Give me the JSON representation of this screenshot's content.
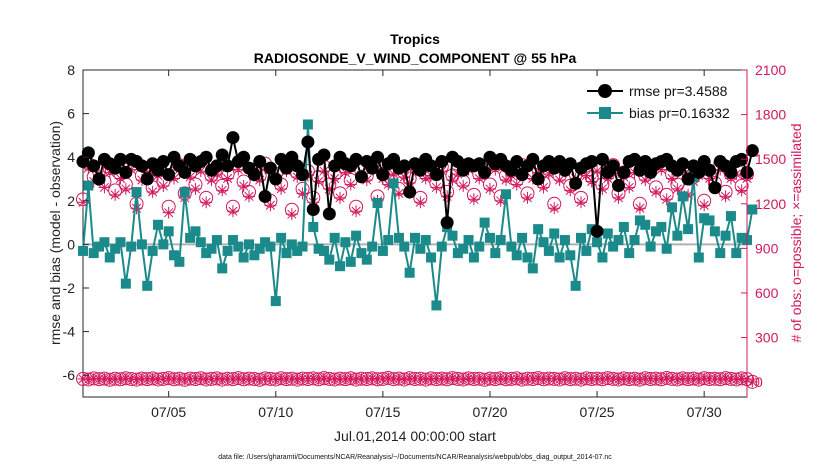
{
  "chart_data": {
    "type": "line",
    "title": "Tropics",
    "subtitle": "RADIOSONDE_V_WIND_COMPONENT @ 55 hPa",
    "xlabel": "Jul.01,2014 00:00:00 start",
    "ylabel": "rmse and bias (model - observation)",
    "y2label": "# of obs: o=possible; ×=assimilated",
    "footnote": "data file: /Users/gharamti/Documents/NCAR/Reanalysis/~/Documents/NCAR/Reanalysis/webpub/obs_diag_output_2014-07.nc",
    "xlim": [
      1.0,
      32.0
    ],
    "ylim": [
      -7,
      8
    ],
    "y2lim": [
      -100,
      2100
    ],
    "x_ticks": [
      5,
      10,
      15,
      20,
      25,
      30
    ],
    "x_tick_labels": [
      "07/05",
      "07/10",
      "07/15",
      "07/20",
      "07/25",
      "07/30"
    ],
    "y_ticks": [
      -6,
      -4,
      -2,
      0,
      2,
      4,
      6,
      8
    ],
    "y_tick_labels": [
      "-6",
      "-4",
      "-2",
      "0",
      "2",
      "4",
      "6",
      "8"
    ],
    "y2_ticks": [
      0,
      300,
      600,
      900,
      1200,
      1500,
      1800,
      2100
    ],
    "y2_tick_labels": [
      "0",
      "300",
      "600",
      "900",
      "1200",
      "1500",
      "1800",
      "2100"
    ],
    "zero_line": 0,
    "legend_position": "top-right",
    "colors": {
      "rmse": "#000000",
      "bias": "#1a8a8a",
      "obs": "#d11a5b",
      "zero": "#b0b0b0"
    },
    "x": [
      1.0,
      1.25,
      1.5,
      1.75,
      2.0,
      2.25,
      2.5,
      2.75,
      3.0,
      3.25,
      3.5,
      3.75,
      4.0,
      4.25,
      4.5,
      4.75,
      5.0,
      5.25,
      5.5,
      5.75,
      6.0,
      6.25,
      6.5,
      6.75,
      7.0,
      7.25,
      7.5,
      7.75,
      8.0,
      8.25,
      8.5,
      8.75,
      9.0,
      9.25,
      9.5,
      9.75,
      10.0,
      10.25,
      10.5,
      10.75,
      11.0,
      11.25,
      11.5,
      11.75,
      12.0,
      12.25,
      12.5,
      12.75,
      13.0,
      13.25,
      13.5,
      13.75,
      14.0,
      14.25,
      14.5,
      14.75,
      15.0,
      15.25,
      15.5,
      15.75,
      16.0,
      16.25,
      16.5,
      16.75,
      17.0,
      17.25,
      17.5,
      17.75,
      18.0,
      18.25,
      18.5,
      18.75,
      19.0,
      19.25,
      19.5,
      19.75,
      20.0,
      20.25,
      20.5,
      20.75,
      21.0,
      21.25,
      21.5,
      21.75,
      22.0,
      22.25,
      22.5,
      22.75,
      23.0,
      23.25,
      23.5,
      23.75,
      24.0,
      24.25,
      24.5,
      24.75,
      25.0,
      25.25,
      25.5,
      25.75,
      26.0,
      26.25,
      26.5,
      26.75,
      27.0,
      27.25,
      27.5,
      27.75,
      28.0,
      28.25,
      28.5,
      28.75,
      29.0,
      29.25,
      29.5,
      29.75,
      30.0,
      30.25,
      30.5,
      30.75,
      31.0,
      31.25,
      31.5,
      31.75,
      32.0
    ],
    "series": [
      {
        "name": "rmse",
        "legend_label": "rmse pr=3.4588",
        "axis": "left",
        "marker": "circle",
        "values": [
          3.8,
          4.2,
          3.6,
          3.0,
          3.9,
          3.7,
          3.5,
          3.9,
          3.3,
          3.9,
          3.8,
          3.6,
          3.0,
          3.7,
          3.4,
          3.8,
          3.2,
          4.0,
          3.6,
          3.3,
          3.9,
          3.6,
          3.8,
          4.0,
          3.4,
          3.6,
          4.1,
          3.6,
          4.9,
          3.8,
          4.0,
          3.5,
          3.2,
          3.8,
          2.2,
          3.5,
          3.0,
          3.9,
          3.5,
          4.0,
          3.6,
          3.2,
          4.7,
          1.6,
          3.9,
          4.1,
          1.4,
          3.6,
          4.0,
          3.7,
          3.6,
          3.9,
          3.1,
          3.8,
          3.5,
          4.0,
          3.2,
          3.7,
          3.9,
          3.5,
          3.6,
          2.4,
          3.7,
          3.4,
          3.9,
          3.6,
          3.2,
          3.8,
          1.0,
          4.0,
          3.8,
          3.4,
          3.7,
          3.6,
          3.7,
          3.3,
          4.0,
          3.7,
          3.9,
          3.6,
          3.4,
          3.8,
          3.2,
          3.6,
          3.9,
          3.0,
          3.6,
          3.8,
          3.5,
          3.8,
          3.4,
          3.7,
          2.8,
          3.5,
          3.7,
          3.8,
          0.6,
          3.9,
          3.3,
          3.6,
          2.7,
          3.3,
          3.8,
          3.9,
          3.4,
          3.8,
          3.3,
          3.7,
          3.8,
          3.9,
          3.6,
          3.4,
          3.7,
          3.0,
          3.6,
          3.3,
          3.8,
          3.4,
          2.6,
          3.8,
          3.6,
          3.3,
          3.8,
          3.9,
          3.3
        ],
        "values_with_fill": [
          3.8,
          4.2,
          3.6,
          3.0,
          3.9,
          3.7,
          3.5,
          3.9,
          3.3,
          3.9,
          3.8,
          3.6,
          3.0,
          3.7,
          3.4,
          3.8,
          3.2,
          4.0,
          3.6,
          3.3,
          3.9,
          3.6,
          3.8,
          4.0,
          3.4,
          3.6,
          4.1,
          3.6,
          4.9,
          3.8,
          4.0,
          3.5,
          3.2,
          3.8,
          2.2,
          3.5,
          3.0,
          3.9,
          3.5,
          4.0,
          3.6,
          3.2,
          4.7,
          1.6,
          3.9,
          4.1,
          1.4,
          3.6,
          4.0,
          3.7,
          3.6,
          3.9,
          3.1,
          3.8,
          3.5,
          4.0,
          3.2,
          3.7,
          3.9,
          3.5,
          3.6,
          2.4,
          3.7,
          3.4,
          3.9,
          3.6,
          3.2,
          3.8,
          1.0,
          4.0,
          3.8,
          3.4,
          3.7,
          3.6,
          3.7,
          3.3,
          4.0,
          3.7,
          3.9,
          3.6,
          3.4,
          3.8,
          3.2,
          3.6,
          3.9,
          3.0,
          3.6,
          3.8,
          3.5,
          3.8,
          3.4,
          3.7,
          2.8,
          3.5,
          3.7,
          3.8,
          0.6,
          3.9,
          3.3,
          3.6,
          2.7,
          3.3,
          3.8,
          3.9,
          3.4,
          3.8,
          3.3,
          3.7,
          3.8,
          3.9,
          3.6,
          3.4,
          3.7,
          3.0,
          3.6,
          3.3,
          3.8,
          3.4,
          2.6,
          3.8,
          3.6,
          3.3,
          3.8,
          3.9,
          3.3,
          4.3
        ]
      },
      {
        "name": "bias",
        "legend_label": "bias pr=0.16332",
        "axis": "left",
        "marker": "square",
        "values": [
          -0.3,
          2.7,
          -0.4,
          -0.1,
          0.1,
          -0.6,
          -0.2,
          0.1,
          -1.8,
          -0.1,
          2.4,
          0.0,
          -1.9,
          -0.3,
          0.9,
          0.0,
          0.6,
          -0.5,
          -0.8,
          2.4,
          0.3,
          0.6,
          0.1,
          -0.4,
          -0.2,
          0.2,
          -1.1,
          -0.3,
          0.2,
          -0.1,
          -0.6,
          0.0,
          -0.5,
          -0.2,
          0.1,
          -0.1,
          -2.6,
          0.3,
          -0.4,
          0.0,
          -0.3,
          -0.1,
          5.5,
          0.8,
          -0.2,
          -0.3,
          -0.7,
          0.3,
          -1.0,
          0.1,
          -0.8,
          0.4,
          -0.4,
          -0.7,
          -0.1,
          1.9,
          -0.3,
          0.2,
          2.8,
          0.3,
          -0.1,
          -1.3,
          0.3,
          -0.2,
          0.2,
          -0.6,
          -2.8,
          -0.1,
          0.8,
          0.4,
          -0.4,
          -0.2,
          0.2,
          -0.6,
          -0.1,
          1.0,
          0.3,
          -0.4,
          0.2,
          2.3,
          -0.1,
          -0.5,
          0.3,
          -0.6,
          -1.1,
          0.7,
          0.1,
          -0.3,
          0.5,
          -0.6,
          0.2,
          -0.5,
          -1.9,
          0.3,
          -0.3,
          0.7,
          0.1,
          -0.6,
          0.5,
          -0.1,
          0.2,
          0.8,
          -0.4,
          0.2,
          1.1,
          0.9,
          -0.1,
          0.6,
          0.8,
          -0.2,
          1.7,
          0.4,
          2.2,
          0.7,
          3.1,
          -0.6,
          1.2,
          1.1,
          0.6,
          -0.4,
          0.4,
          1.3,
          -0.4,
          0.3,
          0.2
        ],
        "values_with_fill": [
          -0.3,
          2.7,
          -0.4,
          -0.1,
          0.1,
          -0.6,
          -0.2,
          0.1,
          -1.8,
          -0.1,
          2.4,
          0.0,
          -1.9,
          -0.3,
          0.9,
          0.0,
          0.6,
          -0.5,
          -0.8,
          2.4,
          0.3,
          0.6,
          0.1,
          -0.4,
          -0.2,
          0.2,
          -1.1,
          -0.3,
          0.2,
          -0.1,
          -0.6,
          0.0,
          -0.5,
          -0.2,
          0.1,
          -0.1,
          -2.6,
          0.3,
          -0.4,
          0.0,
          -0.3,
          -0.1,
          5.5,
          0.8,
          -0.2,
          -0.3,
          -0.7,
          0.3,
          -1.0,
          0.1,
          -0.8,
          0.4,
          -0.4,
          -0.7,
          -0.1,
          1.9,
          -0.3,
          0.2,
          2.8,
          0.3,
          -0.1,
          -1.3,
          0.3,
          -0.2,
          0.2,
          -0.6,
          -2.8,
          -0.1,
          0.8,
          0.4,
          -0.4,
          -0.2,
          0.2,
          -0.6,
          -0.1,
          1.0,
          0.3,
          -0.4,
          0.2,
          2.3,
          -0.1,
          -0.5,
          0.3,
          -0.6,
          -1.1,
          0.7,
          0.1,
          -0.3,
          0.5,
          -0.6,
          0.2,
          -0.5,
          -1.9,
          0.3,
          -0.3,
          0.7,
          0.1,
          -0.6,
          0.5,
          -0.1,
          0.2,
          0.8,
          -0.4,
          0.2,
          1.1,
          0.9,
          -0.1,
          0.6,
          0.8,
          -0.2,
          1.7,
          0.4,
          2.2,
          0.7,
          3.1,
          -0.6,
          1.2,
          1.1,
          0.6,
          -0.4,
          0.4,
          1.3,
          -0.4,
          0.3,
          0.2,
          1.6
        ]
      },
      {
        "name": "obs_possible",
        "axis": "right",
        "marker": "open-circle",
        "values": [
          1230,
          1470,
          1380,
          1420,
          1350,
          1440,
          1290,
          1400,
          1330,
          1460,
          1200,
          1390,
          1440,
          1310,
          1420,
          1350,
          1180,
          1400,
          1460,
          1270,
          1410,
          1330,
          1450,
          1240,
          1390,
          1430,
          1320,
          1400,
          1180,
          1460,
          1350,
          1280,
          1420,
          1390,
          1470,
          1220,
          1400,
          1330,
          1450,
          1160,
          1410,
          1300,
          1420,
          1240,
          1380,
          1450,
          1330,
          1400,
          1270,
          1440,
          1360,
          1180,
          1420,
          1390,
          1460,
          1250,
          1400,
          1360,
          1430,
          1300,
          1410,
          1370,
          1460,
          1240,
          1400,
          1420,
          1340,
          1450,
          1280,
          1390,
          1430,
          1350,
          1460,
          1260,
          1400,
          1430,
          1330,
          1460,
          1250,
          1390,
          1420,
          1360,
          1460,
          1270,
          1400,
          1440,
          1340,
          1430,
          1200,
          1390,
          1450,
          1320,
          1400,
          1240,
          1420,
          1380,
          1450,
          1330,
          1400,
          1460,
          1270,
          1410,
          1340,
          1440,
          1200,
          1390,
          1430,
          1310,
          1460,
          1260,
          1400,
          1330,
          1450,
          1290,
          1380,
          1420,
          1220,
          1400,
          1340,
          1460,
          1280,
          1400,
          1430,
          1320,
          1400
        ]
      },
      {
        "name": "obs_assimilated",
        "axis": "right",
        "marker": "asterisk",
        "values": [
          1210,
          1440,
          1350,
          1390,
          1310,
          1410,
          1260,
          1370,
          1300,
          1430,
          1170,
          1360,
          1410,
          1280,
          1390,
          1320,
          1140,
          1370,
          1430,
          1240,
          1380,
          1300,
          1420,
          1210,
          1360,
          1400,
          1290,
          1370,
          1150,
          1430,
          1320,
          1250,
          1390,
          1360,
          1440,
          1190,
          1370,
          1300,
          1420,
          1130,
          1380,
          1270,
          1390,
          1210,
          1350,
          1420,
          1300,
          1370,
          1240,
          1410,
          1330,
          1150,
          1390,
          1360,
          1430,
          1220,
          1370,
          1330,
          1400,
          1270,
          1380,
          1340,
          1430,
          1210,
          1370,
          1390,
          1310,
          1420,
          1250,
          1360,
          1400,
          1320,
          1430,
          1230,
          1370,
          1400,
          1300,
          1430,
          1220,
          1360,
          1390,
          1330,
          1430,
          1240,
          1370,
          1410,
          1310,
          1400,
          1170,
          1360,
          1420,
          1290,
          1370,
          1210,
          1390,
          1350,
          1420,
          1300,
          1370,
          1430,
          1240,
          1380,
          1310,
          1410,
          1170,
          1360,
          1400,
          1280,
          1430,
          1230,
          1370,
          1300,
          1420,
          1260,
          1350,
          1390,
          1190,
          1370,
          1310,
          1430,
          1250,
          1370,
          1400,
          1290,
          1370
        ]
      },
      {
        "name": "obs_bottom_possible",
        "axis": "right",
        "marker": "open-circle",
        "values": [
          22,
          18,
          25,
          20,
          24,
          16,
          23,
          19,
          26,
          21,
          17,
          24,
          20,
          25,
          18,
          22,
          27,
          19,
          23,
          16,
          24,
          21,
          26,
          18,
          22,
          25,
          17,
          23,
          20,
          27,
          19,
          24,
          21,
          16,
          25,
          22,
          18,
          26,
          20,
          23,
          17,
          24,
          21,
          25,
          19,
          27,
          22,
          18,
          24,
          20,
          26,
          17,
          23,
          21,
          25,
          19,
          22,
          28,
          20,
          24,
          18,
          26,
          21,
          23,
          17,
          25,
          20,
          24,
          19,
          27,
          22,
          18,
          25,
          21,
          23,
          16,
          24,
          20,
          26,
          19,
          22,
          25,
          17,
          23,
          21,
          27,
          19,
          24,
          22,
          18,
          26,
          20,
          23,
          17,
          25,
          21,
          24,
          19,
          27,
          22,
          18,
          25,
          20,
          23,
          17,
          26,
          21,
          24,
          19,
          28,
          22,
          18,
          25,
          20,
          24,
          17,
          26,
          21,
          23,
          19,
          27,
          22,
          18,
          25,
          20
        ],
        "values_with_tail": [
          22,
          18,
          25,
          20,
          24,
          16,
          23,
          19,
          26,
          21,
          17,
          24,
          20,
          25,
          18,
          22,
          27,
          19,
          23,
          16,
          24,
          21,
          26,
          18,
          22,
          25,
          17,
          23,
          20,
          27,
          19,
          24,
          21,
          16,
          25,
          22,
          18,
          26,
          20,
          23,
          17,
          24,
          21,
          25,
          19,
          27,
          22,
          18,
          24,
          20,
          26,
          17,
          23,
          21,
          25,
          19,
          22,
          28,
          20,
          24,
          18,
          26,
          21,
          23,
          17,
          25,
          20,
          24,
          19,
          27,
          22,
          18,
          25,
          21,
          23,
          16,
          24,
          20,
          26,
          19,
          22,
          25,
          17,
          23,
          21,
          27,
          19,
          24,
          22,
          18,
          26,
          20,
          23,
          17,
          25,
          21,
          24,
          19,
          27,
          22,
          18,
          25,
          20,
          23,
          17,
          26,
          21,
          24,
          19,
          28,
          22,
          18,
          25,
          20,
          24,
          17,
          26,
          21,
          23,
          19,
          27,
          22,
          18,
          25,
          20,
          2
        ]
      }
    ],
    "legend": [
      {
        "label": "rmse pr=3.4588",
        "series": "rmse"
      },
      {
        "label": "bias pr=0.16332",
        "series": "bias"
      }
    ]
  }
}
